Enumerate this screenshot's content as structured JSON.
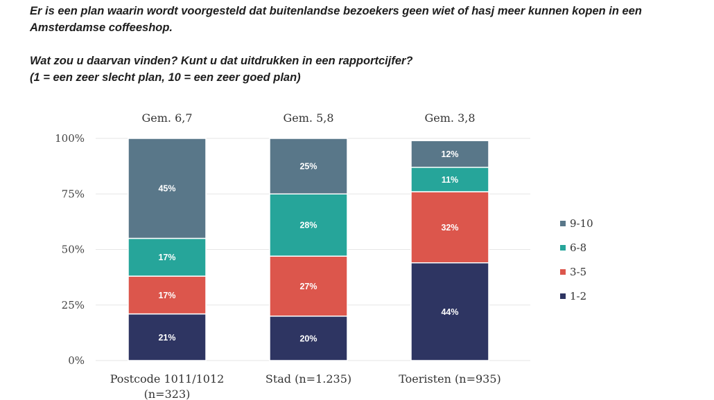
{
  "question": {
    "line1": "Er is een plan waarin wordt voorgesteld dat buitenlandse bezoekers geen wiet of hasj meer kunnen kopen in een Amsterdamse coffeeshop.",
    "line2": "Wat zou u daarvan vinden? Kunt u dat uitdrukken in een rapportcijfer?",
    "line3": "(1 = een zeer slecht plan, 10 = een zeer goed plan)"
  },
  "chart_data": {
    "type": "bar",
    "stacked": true,
    "categories": [
      "Postcode 1011/1012 (n=323)",
      "Stad (n=1.235)",
      "Toeristen (n=935)"
    ],
    "averages": [
      "Gem. 6,7",
      "Gem. 5,8",
      "Gem. 3,8"
    ],
    "series": [
      {
        "name": "1-2",
        "color": "#2e3562",
        "values": [
          21,
          20,
          44
        ],
        "labels": [
          "21%",
          "20%",
          "44%"
        ]
      },
      {
        "name": "3-5",
        "color": "#dc564c",
        "values": [
          17,
          27,
          32
        ],
        "labels": [
          "17%",
          "27%",
          "32%"
        ]
      },
      {
        "name": "6-8",
        "color": "#26a59a",
        "values": [
          17,
          28,
          11
        ],
        "labels": [
          "17%",
          "28%",
          "11%"
        ]
      },
      {
        "name": "9-10",
        "color": "#597789",
        "values": [
          45,
          25,
          12
        ],
        "labels": [
          "45%",
          "25%",
          "12%"
        ]
      }
    ],
    "yticks": [
      "0%",
      "25%",
      "50%",
      "75%",
      "100%"
    ],
    "ylim": [
      0,
      100
    ],
    "legend": [
      "9-10",
      "6-8",
      "3-5",
      "1-2"
    ],
    "legend_placement": "right",
    "grid": true
  }
}
